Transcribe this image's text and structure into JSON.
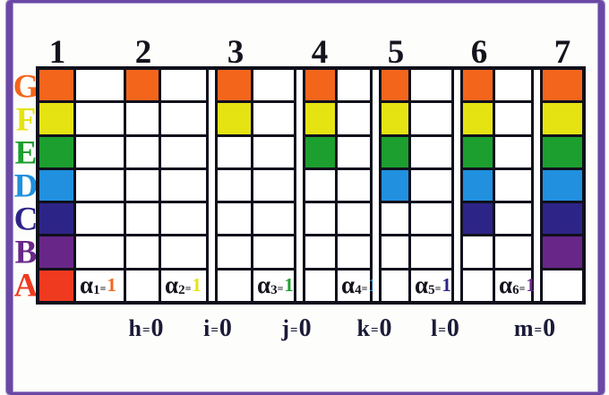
{
  "figure": {
    "frame_color": "#6A48A4",
    "column_numbers": [
      "1",
      "2",
      "3",
      "4",
      "5",
      "6",
      "7"
    ],
    "row_labels": [
      {
        "label": "G",
        "color": "#F4651C"
      },
      {
        "label": "F",
        "color": "#E6E312"
      },
      {
        "label": "E",
        "color": "#1C9F2E"
      },
      {
        "label": "D",
        "color": "#2090DF"
      },
      {
        "label": "C",
        "color": "#2D2487"
      },
      {
        "label": "B",
        "color": "#682788"
      },
      {
        "label": "A",
        "color": "#EF3A20"
      }
    ],
    "alphas": [
      {
        "base": "α",
        "sub": "1",
        "eq": "=",
        "val": "1",
        "val_color": "#F4651C"
      },
      {
        "base": "α",
        "sub": "2",
        "eq": "=",
        "val": "1",
        "val_color": "#E6E312"
      },
      {
        "base": "α",
        "sub": "3",
        "eq": "=",
        "val": "1",
        "val_color": "#1C9F2E"
      },
      {
        "base": "α",
        "sub": "4",
        "eq": "=",
        "val": "1",
        "val_color": "#2090DF"
      },
      {
        "base": "α",
        "sub": "5",
        "eq": "=",
        "val": "1",
        "val_color": "#2D2487"
      },
      {
        "base": "α",
        "sub": "6",
        "eq": "=",
        "val": "1",
        "val_color": "#682788"
      }
    ],
    "bottom_labels": [
      {
        "name": "h",
        "eq": "=",
        "val": "0"
      },
      {
        "name": "i",
        "eq": "=",
        "val": "0"
      },
      {
        "name": "j",
        "eq": "=",
        "val": "0"
      },
      {
        "name": "k",
        "eq": "=",
        "val": "0"
      },
      {
        "name": "l",
        "eq": "=",
        "val": "0"
      },
      {
        "name": "m",
        "eq": "=",
        "val": "0"
      }
    ],
    "grid": {
      "description": "7 rows (G..A top to bottom) x 7 numbered color columns; 1 = cell filled with the row color, 0 = white cell",
      "fill_matrix": [
        [
          1,
          1,
          1,
          1,
          1,
          1,
          1
        ],
        [
          1,
          0,
          1,
          1,
          1,
          1,
          1
        ],
        [
          1,
          0,
          0,
          1,
          1,
          1,
          1
        ],
        [
          1,
          0,
          0,
          0,
          1,
          1,
          1
        ],
        [
          1,
          0,
          0,
          0,
          0,
          1,
          1
        ],
        [
          1,
          0,
          0,
          0,
          0,
          0,
          1
        ],
        [
          1,
          0,
          0,
          0,
          0,
          0,
          0
        ]
      ],
      "empty_cell_color": "#FFFFFF",
      "line_color": "#10101C"
    }
  }
}
